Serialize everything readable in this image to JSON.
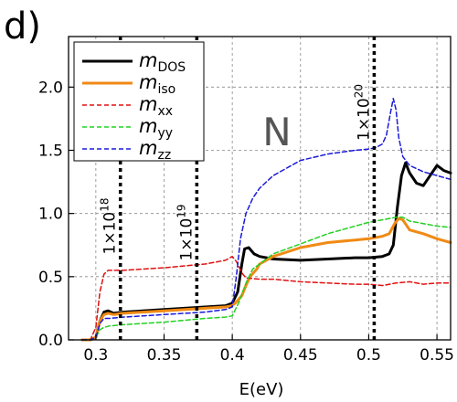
{
  "panel_label": "d)",
  "chart_data": {
    "type": "line",
    "xlabel": "E(eV)",
    "ylabel": "",
    "xlim": [
      0.28,
      0.56
    ],
    "ylim": [
      0.0,
      2.4
    ],
    "x_ticks": [
      0.3,
      0.35,
      0.4,
      0.45,
      0.5,
      0.55
    ],
    "x_tick_labels": [
      "0.3",
      "0.35",
      "0.4",
      "0.45",
      "0.5",
      "0.55"
    ],
    "y_ticks": [
      0.0,
      0.5,
      1.0,
      1.5,
      2.0
    ],
    "y_tick_labels": [
      "0.0",
      "0.5",
      "1.0",
      "1.5",
      "2.0"
    ],
    "grid": true,
    "legend_position": "top-left",
    "annotation": "N",
    "series": [
      {
        "name": "m_DOS",
        "base": "m",
        "sub": "DOS",
        "color": "#000000",
        "style": "solid",
        "width": 3,
        "x": [
          0.29,
          0.296,
          0.3,
          0.303,
          0.306,
          0.309,
          0.313,
          0.32,
          0.35,
          0.38,
          0.395,
          0.4,
          0.404,
          0.407,
          0.409,
          0.412,
          0.416,
          0.42,
          0.43,
          0.45,
          0.47,
          0.49,
          0.5,
          0.51,
          0.515,
          0.518,
          0.521,
          0.524,
          0.527,
          0.53,
          0.535,
          0.54,
          0.545,
          0.55,
          0.555,
          0.56
        ],
        "y": [
          0.0,
          0.0,
          0.02,
          0.15,
          0.22,
          0.23,
          0.21,
          0.22,
          0.24,
          0.26,
          0.27,
          0.29,
          0.38,
          0.6,
          0.72,
          0.73,
          0.68,
          0.66,
          0.64,
          0.63,
          0.64,
          0.65,
          0.65,
          0.66,
          0.68,
          0.75,
          1.05,
          1.3,
          1.4,
          1.32,
          1.24,
          1.22,
          1.3,
          1.38,
          1.34,
          1.32
        ]
      },
      {
        "name": "m_iso",
        "base": "m",
        "sub": "iso",
        "color": "#f08a14",
        "style": "solid",
        "width": 3,
        "x": [
          0.29,
          0.296,
          0.3,
          0.303,
          0.306,
          0.309,
          0.313,
          0.32,
          0.35,
          0.38,
          0.395,
          0.4,
          0.403,
          0.407,
          0.41,
          0.413,
          0.418,
          0.42,
          0.43,
          0.45,
          0.47,
          0.49,
          0.5,
          0.51,
          0.515,
          0.519,
          0.522,
          0.525,
          0.53,
          0.54,
          0.55,
          0.56
        ],
        "y": [
          0.0,
          0.0,
          0.02,
          0.15,
          0.2,
          0.21,
          0.2,
          0.21,
          0.23,
          0.25,
          0.26,
          0.27,
          0.3,
          0.35,
          0.43,
          0.5,
          0.56,
          0.6,
          0.66,
          0.73,
          0.77,
          0.79,
          0.8,
          0.82,
          0.84,
          0.92,
          0.96,
          0.95,
          0.87,
          0.84,
          0.8,
          0.77
        ]
      },
      {
        "name": "m_xx",
        "base": "m",
        "sub": "xx",
        "color": "#e01010",
        "style": "dashed",
        "width": 1.5,
        "x": [
          0.29,
          0.296,
          0.3,
          0.303,
          0.306,
          0.309,
          0.313,
          0.32,
          0.35,
          0.38,
          0.395,
          0.4,
          0.403,
          0.407,
          0.41,
          0.42,
          0.43,
          0.45,
          0.47,
          0.49,
          0.5,
          0.51,
          0.52,
          0.53,
          0.54,
          0.55,
          0.56
        ],
        "y": [
          0.0,
          0.0,
          0.1,
          0.38,
          0.52,
          0.55,
          0.55,
          0.55,
          0.57,
          0.6,
          0.63,
          0.66,
          0.62,
          0.53,
          0.49,
          0.48,
          0.48,
          0.46,
          0.45,
          0.44,
          0.44,
          0.43,
          0.45,
          0.46,
          0.44,
          0.45,
          0.45
        ]
      },
      {
        "name": "m_yy",
        "base": "m",
        "sub": "yy",
        "color": "#22d022",
        "style": "dashed",
        "width": 1.5,
        "x": [
          0.29,
          0.296,
          0.3,
          0.303,
          0.306,
          0.31,
          0.32,
          0.35,
          0.38,
          0.395,
          0.4,
          0.405,
          0.41,
          0.415,
          0.42,
          0.43,
          0.45,
          0.47,
          0.49,
          0.5,
          0.51,
          0.52,
          0.525,
          0.53,
          0.54,
          0.55,
          0.56
        ],
        "y": [
          0.0,
          0.0,
          0.02,
          0.08,
          0.1,
          0.11,
          0.12,
          0.14,
          0.17,
          0.18,
          0.19,
          0.3,
          0.45,
          0.56,
          0.6,
          0.68,
          0.76,
          0.84,
          0.9,
          0.93,
          0.95,
          0.97,
          0.97,
          0.94,
          0.92,
          0.9,
          0.89
        ]
      },
      {
        "name": "m_zz",
        "base": "m",
        "sub": "zz",
        "color": "#1a1ad8",
        "style": "dashed",
        "width": 1.5,
        "x": [
          0.29,
          0.296,
          0.3,
          0.303,
          0.306,
          0.31,
          0.32,
          0.35,
          0.38,
          0.395,
          0.4,
          0.403,
          0.406,
          0.41,
          0.415,
          0.42,
          0.43,
          0.45,
          0.47,
          0.49,
          0.5,
          0.505,
          0.51,
          0.513,
          0.516,
          0.518,
          0.52,
          0.522,
          0.525,
          0.53,
          0.54,
          0.55,
          0.56
        ],
        "y": [
          0.0,
          0.0,
          0.02,
          0.13,
          0.17,
          0.17,
          0.18,
          0.2,
          0.22,
          0.24,
          0.26,
          0.5,
          0.8,
          1.0,
          1.12,
          1.2,
          1.3,
          1.42,
          1.47,
          1.5,
          1.51,
          1.52,
          1.55,
          1.62,
          1.8,
          1.91,
          1.82,
          1.6,
          1.45,
          1.38,
          1.33,
          1.3,
          1.27
        ]
      }
    ],
    "vertical_markers": [
      {
        "x": 0.318,
        "label": "1×10",
        "exp": "18",
        "label_y": 0.9
      },
      {
        "x": 0.374,
        "label": "1×10",
        "exp": "19",
        "label_y": 0.85
      },
      {
        "x": 0.504,
        "label": "1×10",
        "exp": "20",
        "label_y": 1.8
      }
    ],
    "colors": {
      "axis": "#000000",
      "grid": "#888888",
      "marker": "#000000"
    }
  }
}
